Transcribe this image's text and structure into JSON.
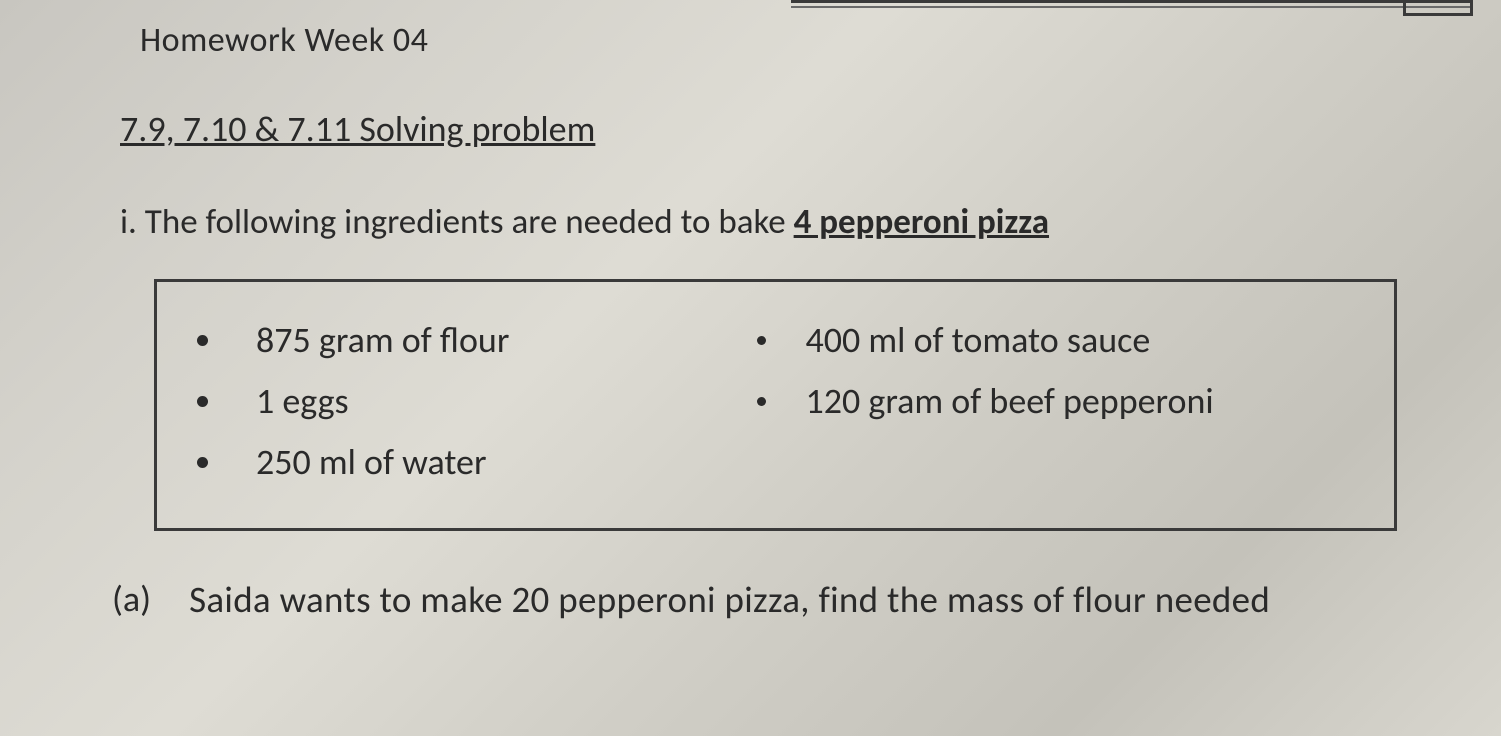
{
  "header": {
    "homework_title": "Homework Week 04",
    "section_title": "7.9, 7.10 & 7.11 Solving problem"
  },
  "problem": {
    "intro_prefix": "i. The following ingredients are needed to bake ",
    "intro_emph": "4 pepperoni pizza"
  },
  "ingredients": {
    "left": [
      "875 gram of flour",
      "1 eggs",
      "250 ml of water"
    ],
    "right": [
      "400 ml of tomato sauce",
      "120 gram of beef pepperoni"
    ]
  },
  "question": {
    "label": "(a)",
    "text": "Saida wants to make 20 pepperoni pizza, find the mass of flour needed"
  },
  "style": {
    "text_color": "#2a2a2a",
    "box_border": "#3a3a3a"
  }
}
